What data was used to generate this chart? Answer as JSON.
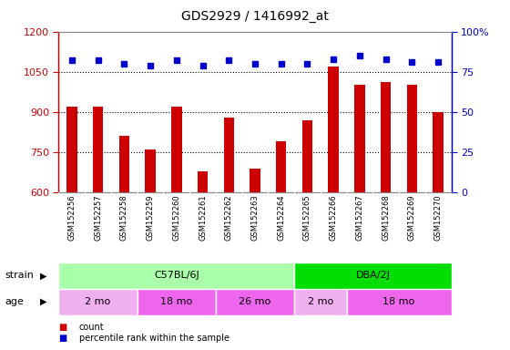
{
  "title": "GDS2929 / 1416992_at",
  "samples": [
    "GSM152256",
    "GSM152257",
    "GSM152258",
    "GSM152259",
    "GSM152260",
    "GSM152261",
    "GSM152262",
    "GSM152263",
    "GSM152264",
    "GSM152265",
    "GSM152266",
    "GSM152267",
    "GSM152268",
    "GSM152269",
    "GSM152270"
  ],
  "counts": [
    920,
    920,
    810,
    760,
    920,
    680,
    880,
    690,
    790,
    870,
    1070,
    1000,
    1010,
    1000,
    900
  ],
  "percentile_ranks": [
    82,
    82,
    80,
    79,
    82,
    79,
    82,
    80,
    80,
    80,
    83,
    85,
    83,
    81,
    81
  ],
  "ylim_left": [
    600,
    1200
  ],
  "ylim_right": [
    0,
    100
  ],
  "yticks_left": [
    600,
    750,
    900,
    1050,
    1200
  ],
  "yticks_right": [
    0,
    25,
    50,
    75,
    100
  ],
  "bar_color": "#cc0000",
  "dot_color": "#0000cc",
  "bar_bottom": 600,
  "strain_groups": [
    {
      "label": "C57BL/6J",
      "start": 0,
      "end": 9,
      "color": "#aaffaa"
    },
    {
      "label": "DBA/2J",
      "start": 9,
      "end": 15,
      "color": "#00dd00"
    }
  ],
  "age_groups": [
    {
      "label": "2 mo",
      "start": 0,
      "end": 3,
      "color": "#f0b0f0"
    },
    {
      "label": "18 mo",
      "start": 3,
      "end": 6,
      "color": "#ee66ee"
    },
    {
      "label": "26 mo",
      "start": 6,
      "end": 9,
      "color": "#ee66ee"
    },
    {
      "label": "2 mo",
      "start": 9,
      "end": 11,
      "color": "#f0b0f0"
    },
    {
      "label": "18 mo",
      "start": 11,
      "end": 15,
      "color": "#ee66ee"
    }
  ],
  "strain_label": "strain",
  "age_label": "age",
  "legend_count": "count",
  "legend_pct": "percentile rank within the sample",
  "background_color": "#ffffff",
  "plot_bg": "#ffffff",
  "dotted_line_color": "#000000",
  "right_axis_color": "#0000cc",
  "left_axis_color": "#cc0000",
  "tick_label_bg": "#d8d8d8"
}
